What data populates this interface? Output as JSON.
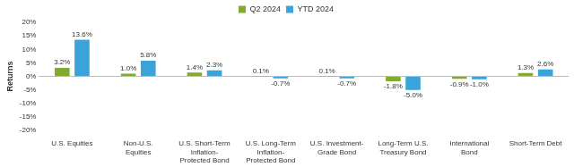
{
  "chart_data": {
    "type": "bar",
    "categories": [
      "U.S. Equities",
      "Non-U.S. Equities",
      "U.S. Short-Term Inflation-Protected Bond",
      "U.S. Long-Term Inflation-Protected Bond",
      "U.S. Investment-Grade Bond",
      "Long-Term U.S. Treasury Bond",
      "International Bond",
      "Short-Term Debt"
    ],
    "series": [
      {
        "name": "Q2 2024",
        "color": "#7fab2e",
        "values": [
          3.2,
          1.0,
          1.4,
          0.1,
          0.1,
          -1.8,
          -0.9,
          1.3
        ],
        "value_labels": [
          "3.2%",
          "1.0%",
          "1.4%",
          "0.1%",
          "0.1%",
          "-1.8%",
          "-0.9%",
          "1.3%"
        ]
      },
      {
        "name": "YTD 2024",
        "color": "#3aa3da",
        "values": [
          13.6,
          5.8,
          2.3,
          -0.7,
          -0.7,
          -5.0,
          -1.0,
          2.6
        ],
        "value_labels": [
          "13.6%",
          "5.8%",
          "2.3%",
          "-0.7%",
          "-0.7%",
          "-5.0%",
          "-1.0%",
          "2.6%"
        ]
      }
    ],
    "y_label": "Returns",
    "ylim": [
      -20,
      20
    ],
    "yticks": [
      {
        "value": -20,
        "label": "-20%"
      },
      {
        "value": -15,
        "label": "-15%"
      },
      {
        "value": -10,
        "label": "-10%"
      },
      {
        "value": -5,
        "label": "-5%"
      },
      {
        "value": 0,
        "label": "0%"
      },
      {
        "value": 5,
        "label": "5%"
      },
      {
        "value": 10,
        "label": "10%"
      },
      {
        "value": 15,
        "label": "15%"
      },
      {
        "value": 20,
        "label": "20%"
      }
    ],
    "grid": false,
    "legend": "top",
    "data_labels": true
  }
}
